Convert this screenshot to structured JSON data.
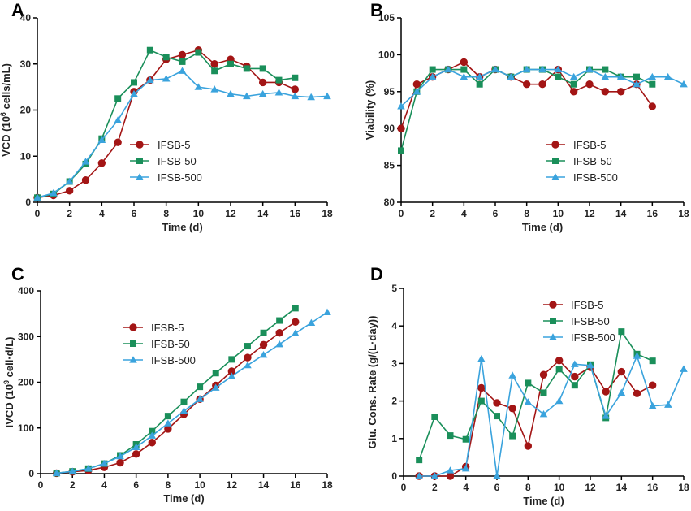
{
  "colors": {
    "s5": "#a31515",
    "s50": "#1a8f5a",
    "s500": "#3aa3dd",
    "axis": "#000000"
  },
  "legend_labels": [
    "IFSB-5",
    "IFSB-50",
    "IFSB-500"
  ],
  "chart_data": [
    {
      "panel": "A",
      "type": "line",
      "xlabel": "Time (d)",
      "ylabel_prefix": "VCD (10",
      "ylabel_sup": "6",
      "ylabel_suffix": " cells/mL)",
      "xlim": [
        0,
        18
      ],
      "ylim": [
        0,
        40
      ],
      "xticks": [
        0,
        2,
        4,
        6,
        8,
        10,
        12,
        14,
        16,
        18
      ],
      "yticks": [
        0,
        10,
        20,
        30,
        40
      ],
      "legend_position": "middle-left",
      "series": [
        {
          "name": "IFSB-5",
          "marker": "circle",
          "x": [
            0,
            1,
            2,
            3,
            4,
            5,
            6,
            7,
            8,
            9,
            10,
            11,
            12,
            13,
            14,
            15,
            16
          ],
          "y": [
            1.0,
            1.5,
            2.5,
            4.8,
            8.5,
            13,
            24,
            26.5,
            31,
            32,
            33,
            30,
            31,
            29.5,
            26,
            26,
            24.5
          ]
        },
        {
          "name": "IFSB-50",
          "marker": "square",
          "x": [
            0,
            1,
            2,
            3,
            4,
            5,
            6,
            7,
            8,
            9,
            10,
            11,
            12,
            13,
            14,
            15,
            16
          ],
          "y": [
            1.0,
            1.8,
            4.5,
            8.3,
            13.8,
            22.5,
            26,
            33,
            31.5,
            30.5,
            32.5,
            28.5,
            30,
            29,
            29,
            26.5,
            27
          ]
        },
        {
          "name": "IFSB-500",
          "marker": "triangle",
          "x": [
            0,
            1,
            2,
            3,
            4,
            5,
            6,
            7,
            8,
            9,
            10,
            11,
            12,
            13,
            14,
            15,
            16,
            17,
            18
          ],
          "y": [
            1.0,
            2.0,
            4.5,
            8.8,
            13.5,
            17.8,
            23.5,
            26.5,
            26.8,
            28.5,
            25,
            24.5,
            23.5,
            23,
            23.5,
            23.8,
            23,
            22.8,
            23
          ]
        }
      ]
    },
    {
      "panel": "B",
      "type": "line",
      "xlabel": "Time (d)",
      "ylabel_prefix": "Viability (%)",
      "ylabel_sup": "",
      "ylabel_suffix": "",
      "xlim": [
        0,
        18
      ],
      "ylim": [
        80,
        105
      ],
      "xticks": [
        0,
        2,
        4,
        6,
        8,
        10,
        12,
        14,
        16,
        18
      ],
      "yticks": [
        80,
        85,
        90,
        95,
        100,
        105
      ],
      "legend_position": "lower-middle",
      "series": [
        {
          "name": "IFSB-5",
          "marker": "circle",
          "x": [
            0,
            1,
            2,
            3,
            4,
            5,
            6,
            7,
            8,
            9,
            10,
            11,
            12,
            13,
            14,
            15,
            16
          ],
          "y": [
            90,
            96,
            97,
            98,
            99,
            97,
            98,
            97,
            96,
            96,
            98,
            95,
            96,
            95,
            95,
            96,
            93
          ]
        },
        {
          "name": "IFSB-50",
          "marker": "square",
          "x": [
            0,
            1,
            2,
            3,
            4,
            5,
            6,
            7,
            8,
            9,
            10,
            11,
            12,
            13,
            14,
            15,
            16
          ],
          "y": [
            87,
            95,
            98,
            98,
            98,
            96,
            98,
            97,
            98,
            98,
            97,
            96,
            98,
            98,
            97,
            97,
            96
          ]
        },
        {
          "name": "IFSB-500",
          "marker": "triangle",
          "x": [
            0,
            1,
            2,
            3,
            4,
            5,
            6,
            7,
            8,
            9,
            10,
            11,
            12,
            13,
            14,
            15,
            16,
            17,
            18
          ],
          "y": [
            93,
            95,
            97,
            98,
            97,
            97,
            98,
            97,
            98,
            98,
            98,
            97,
            98,
            97,
            97,
            96,
            97,
            97,
            96
          ]
        }
      ]
    },
    {
      "panel": "C",
      "type": "line",
      "xlabel": "Time (d)",
      "ylabel_prefix": "IVCD (10",
      "ylabel_sup": "9",
      "ylabel_suffix": " cell·d/L)",
      "xlim": [
        0,
        18
      ],
      "ylim": [
        0,
        400
      ],
      "xticks": [
        0,
        2,
        4,
        6,
        8,
        10,
        12,
        14,
        16,
        18
      ],
      "yticks": [
        0,
        100,
        200,
        300,
        400
      ],
      "legend_position": "top-left",
      "series": [
        {
          "name": "IFSB-5",
          "marker": "circle",
          "x": [
            1,
            2,
            3,
            4,
            5,
            6,
            7,
            8,
            9,
            10,
            11,
            12,
            13,
            14,
            15,
            16
          ],
          "y": [
            1,
            4,
            7,
            14,
            24,
            43,
            68,
            98,
            130,
            163,
            193,
            224,
            254,
            282,
            308,
            332
          ]
        },
        {
          "name": "IFSB-50",
          "marker": "square",
          "x": [
            1,
            2,
            3,
            4,
            5,
            6,
            7,
            8,
            9,
            10,
            11,
            12,
            13,
            14,
            15,
            16
          ],
          "y": [
            1,
            5,
            11,
            22,
            40,
            64,
            93,
            126,
            157,
            190,
            220,
            250,
            279,
            308,
            335,
            362
          ]
        },
        {
          "name": "IFSB-500",
          "marker": "triangle",
          "x": [
            1,
            2,
            3,
            4,
            5,
            6,
            7,
            8,
            9,
            10,
            11,
            12,
            13,
            14,
            15,
            16,
            17,
            18
          ],
          "y": [
            1,
            5,
            11,
            22,
            38,
            58,
            83,
            110,
            137,
            163,
            188,
            213,
            237,
            260,
            283,
            307,
            330,
            353
          ]
        }
      ]
    },
    {
      "panel": "D",
      "type": "line",
      "xlabel": "Time (d)",
      "ylabel_prefix": "Glu. Cons. Rate (g/(L·day))",
      "ylabel_sup": "",
      "ylabel_suffix": "",
      "xlim": [
        0,
        18
      ],
      "ylim": [
        0,
        5
      ],
      "xticks": [
        0,
        2,
        4,
        6,
        8,
        10,
        12,
        14,
        16,
        18
      ],
      "yticks": [
        0,
        1,
        2,
        3,
        4,
        5
      ],
      "legend_position": "top-middle",
      "series": [
        {
          "name": "IFSB-5",
          "marker": "circle",
          "x": [
            1,
            2,
            3,
            4,
            5,
            6,
            7,
            8,
            9,
            10,
            11,
            12,
            13,
            14,
            15,
            16
          ],
          "y": [
            0,
            0,
            0,
            0.25,
            2.35,
            1.95,
            1.8,
            0.8,
            2.7,
            3.08,
            2.65,
            2.9,
            2.25,
            2.78,
            2.2,
            2.42
          ]
        },
        {
          "name": "IFSB-50",
          "marker": "square",
          "x": [
            1,
            2,
            3,
            4,
            5,
            6,
            7,
            8,
            9,
            10,
            11,
            12,
            13,
            14,
            15,
            16
          ],
          "y": [
            0.43,
            1.58,
            1.08,
            0.98,
            2.0,
            1.6,
            1.07,
            2.48,
            2.22,
            2.85,
            2.42,
            2.97,
            1.55,
            3.85,
            3.25,
            3.07
          ]
        },
        {
          "name": "IFSB-500",
          "marker": "triangle",
          "x": [
            1,
            2,
            3,
            4,
            5,
            6,
            7,
            8,
            9,
            10,
            11,
            12,
            13,
            14,
            15,
            16,
            17,
            18
          ],
          "y": [
            0,
            0,
            0.15,
            0.2,
            3.12,
            0,
            2.68,
            1.97,
            1.65,
            2.0,
            2.98,
            2.95,
            1.6,
            2.22,
            3.2,
            1.87,
            1.9,
            2.85
          ]
        }
      ]
    }
  ]
}
